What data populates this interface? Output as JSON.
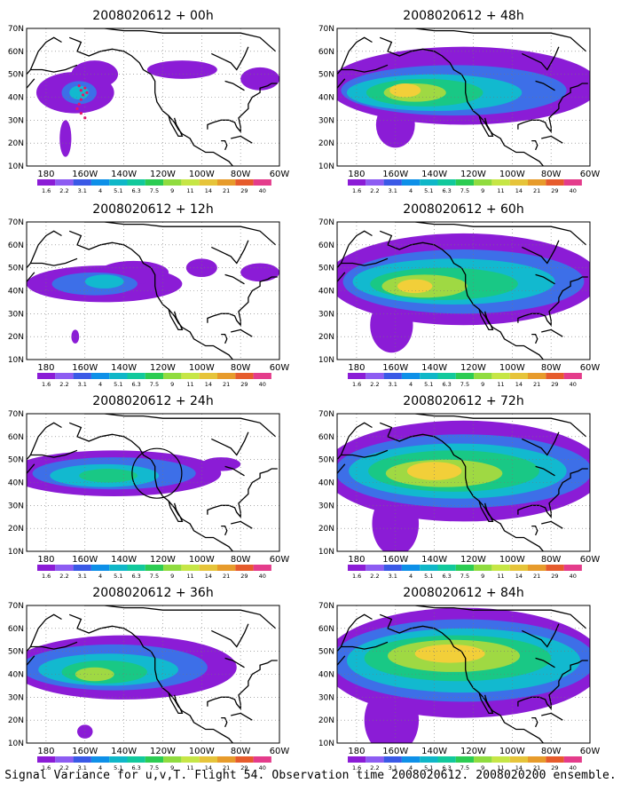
{
  "figure_caption": "Signal Variance for u,v,T. Flight 54. Observation time 2008020612. 2008020200 ensemble.",
  "chart_data": [
    {
      "type": "heatmap",
      "title": "2008020612 + 00h",
      "xlabel": "",
      "ylabel": "",
      "x_ticks": [
        "180",
        "160W",
        "140W",
        "120W",
        "100W",
        "80W",
        "60W"
      ],
      "y_ticks": [
        "10N",
        "20N",
        "30N",
        "40N",
        "50N",
        "60N",
        "70N"
      ],
      "xlim": [
        -190,
        -60
      ],
      "ylim": [
        10,
        70
      ],
      "legend_levels": [
        "1.6",
        "2.2",
        "3.1",
        "4",
        "5.1",
        "6.3",
        "7.5",
        "9",
        "11",
        "14",
        "21",
        "29",
        "40"
      ],
      "markers": "dropsonde points",
      "blobs": [
        {
          "lon": -165,
          "lat": 42,
          "rx": 20,
          "ry": 9,
          "level": 0
        },
        {
          "lon": -155,
          "lat": 50,
          "rx": 12,
          "ry": 6,
          "level": 0
        },
        {
          "lon": -110,
          "lat": 52,
          "rx": 18,
          "ry": 4,
          "level": 0
        },
        {
          "lon": -163,
          "lat": 42,
          "rx": 9,
          "ry": 5,
          "level": 1
        },
        {
          "lon": -163,
          "lat": 42,
          "rx": 5,
          "ry": 3,
          "level": 2
        },
        {
          "lon": -170,
          "lat": 22,
          "rx": 3,
          "ry": 8,
          "level": 0
        },
        {
          "lon": -70,
          "lat": 48,
          "rx": 10,
          "ry": 5,
          "level": 0
        }
      ]
    },
    {
      "type": "heatmap",
      "title": "2008020612 + 12h",
      "xlabel": "",
      "ylabel": "",
      "x_ticks": [
        "180",
        "160W",
        "140W",
        "120W",
        "100W",
        "80W",
        "60W"
      ],
      "y_ticks": [
        "10N",
        "20N",
        "30N",
        "40N",
        "50N",
        "60N",
        "70N"
      ],
      "xlim": [
        -190,
        -60
      ],
      "ylim": [
        10,
        70
      ],
      "legend_levels": [
        "1.6",
        "2.2",
        "3.1",
        "4",
        "5.1",
        "6.3",
        "7.5",
        "9",
        "11",
        "14",
        "21",
        "29",
        "40"
      ],
      "blobs": [
        {
          "lon": -150,
          "lat": 43,
          "rx": 40,
          "ry": 8,
          "level": 0
        },
        {
          "lon": -135,
          "lat": 48,
          "rx": 18,
          "ry": 5,
          "level": 0
        },
        {
          "lon": -100,
          "lat": 50,
          "rx": 8,
          "ry": 4,
          "level": 0
        },
        {
          "lon": -70,
          "lat": 48,
          "rx": 10,
          "ry": 4,
          "level": 0
        },
        {
          "lon": -155,
          "lat": 43,
          "rx": 22,
          "ry": 5,
          "level": 1
        },
        {
          "lon": -150,
          "lat": 44,
          "rx": 10,
          "ry": 3,
          "level": 2
        },
        {
          "lon": -165,
          "lat": 20,
          "rx": 2,
          "ry": 3,
          "level": 0
        }
      ]
    },
    {
      "type": "heatmap",
      "title": "2008020612 + 24h",
      "xlabel": "",
      "ylabel": "",
      "x_ticks": [
        "180",
        "160W",
        "140W",
        "120W",
        "100W",
        "80W",
        "60W"
      ],
      "y_ticks": [
        "10N",
        "20N",
        "30N",
        "40N",
        "50N",
        "60N",
        "70N"
      ],
      "xlim": [
        -190,
        -60
      ],
      "ylim": [
        10,
        70
      ],
      "legend_levels": [
        "1.6",
        "2.2",
        "3.1",
        "4",
        "5.1",
        "6.3",
        "7.5",
        "9",
        "11",
        "14",
        "21",
        "29",
        "40"
      ],
      "annotation": "circle",
      "blobs": [
        {
          "lon": -145,
          "lat": 44,
          "rx": 55,
          "ry": 10,
          "level": 0
        },
        {
          "lon": -145,
          "lat": 44,
          "rx": 42,
          "ry": 7,
          "level": 1
        },
        {
          "lon": -150,
          "lat": 43,
          "rx": 28,
          "ry": 5,
          "level": 2
        },
        {
          "lon": -148,
          "lat": 43,
          "rx": 15,
          "ry": 3,
          "level": 3
        },
        {
          "lon": -90,
          "lat": 48,
          "rx": 10,
          "ry": 3,
          "level": 0
        }
      ]
    },
    {
      "type": "heatmap",
      "title": "2008020612 + 36h",
      "xlabel": "",
      "ylabel": "",
      "x_ticks": [
        "180",
        "160W",
        "140W",
        "120W",
        "100W",
        "80W",
        "60W"
      ],
      "y_ticks": [
        "10N",
        "20N",
        "30N",
        "40N",
        "50N",
        "60N",
        "70N"
      ],
      "xlim": [
        -190,
        -60
      ],
      "ylim": [
        10,
        70
      ],
      "legend_levels": [
        "1.6",
        "2.2",
        "3.1",
        "4",
        "5.1",
        "6.3",
        "7.5",
        "9",
        "11",
        "14",
        "21",
        "29",
        "40"
      ],
      "blobs": [
        {
          "lon": -140,
          "lat": 43,
          "rx": 58,
          "ry": 14,
          "level": 0
        },
        {
          "lon": -145,
          "lat": 43,
          "rx": 48,
          "ry": 10,
          "level": 1
        },
        {
          "lon": -148,
          "lat": 42,
          "rx": 36,
          "ry": 7,
          "level": 2
        },
        {
          "lon": -150,
          "lat": 41,
          "rx": 22,
          "ry": 5,
          "level": 3
        },
        {
          "lon": -155,
          "lat": 40,
          "rx": 10,
          "ry": 3,
          "level": 4
        },
        {
          "lon": -160,
          "lat": 15,
          "rx": 4,
          "ry": 3,
          "level": 0
        }
      ]
    },
    {
      "type": "heatmap",
      "title": "2008020612 + 48h",
      "xlabel": "",
      "ylabel": "",
      "x_ticks": [
        "180",
        "160W",
        "140W",
        "120W",
        "100W",
        "80W",
        "60W"
      ],
      "y_ticks": [
        "10N",
        "20N",
        "30N",
        "40N",
        "50N",
        "60N",
        "70N"
      ],
      "xlim": [
        -190,
        -60
      ],
      "ylim": [
        10,
        70
      ],
      "legend_levels": [
        "1.6",
        "2.2",
        "3.1",
        "4",
        "5.1",
        "6.3",
        "7.5",
        "9",
        "11",
        "14",
        "21",
        "29",
        "40"
      ],
      "blobs": [
        {
          "lon": -125,
          "lat": 45,
          "rx": 70,
          "ry": 17,
          "level": 0
        },
        {
          "lon": -160,
          "lat": 28,
          "rx": 10,
          "ry": 10,
          "level": 0
        },
        {
          "lon": -130,
          "lat": 43,
          "rx": 58,
          "ry": 11,
          "level": 1
        },
        {
          "lon": -140,
          "lat": 42,
          "rx": 45,
          "ry": 8,
          "level": 2
        },
        {
          "lon": -145,
          "lat": 42,
          "rx": 30,
          "ry": 6,
          "level": 3
        },
        {
          "lon": -150,
          "lat": 42,
          "rx": 16,
          "ry": 4,
          "level": 4
        },
        {
          "lon": -155,
          "lat": 43,
          "rx": 8,
          "ry": 3,
          "level": 5
        }
      ]
    },
    {
      "type": "heatmap",
      "title": "2008020612 + 60h",
      "xlabel": "",
      "ylabel": "",
      "x_ticks": [
        "180",
        "160W",
        "140W",
        "120W",
        "100W",
        "80W",
        "60W"
      ],
      "y_ticks": [
        "10N",
        "20N",
        "30N",
        "40N",
        "50N",
        "60N",
        "70N"
      ],
      "xlim": [
        -190,
        -60
      ],
      "ylim": [
        10,
        70
      ],
      "legend_levels": [
        "1.6",
        "2.2",
        "3.1",
        "4",
        "5.1",
        "6.3",
        "7.5",
        "9",
        "11",
        "14",
        "21",
        "29",
        "40"
      ],
      "blobs": [
        {
          "lon": -125,
          "lat": 45,
          "rx": 70,
          "ry": 20,
          "level": 0
        },
        {
          "lon": -162,
          "lat": 25,
          "rx": 11,
          "ry": 12,
          "level": 0
        },
        {
          "lon": -125,
          "lat": 44,
          "rx": 62,
          "ry": 14,
          "level": 1
        },
        {
          "lon": -130,
          "lat": 44,
          "rx": 52,
          "ry": 10,
          "level": 2
        },
        {
          "lon": -135,
          "lat": 43,
          "rx": 38,
          "ry": 7,
          "level": 3
        },
        {
          "lon": -145,
          "lat": 42,
          "rx": 22,
          "ry": 5,
          "level": 4
        },
        {
          "lon": -150,
          "lat": 42,
          "rx": 9,
          "ry": 3,
          "level": 5
        }
      ]
    },
    {
      "type": "heatmap",
      "title": "2008020612 + 72h",
      "xlabel": "",
      "ylabel": "",
      "x_ticks": [
        "180",
        "160W",
        "140W",
        "120W",
        "100W",
        "80W",
        "60W"
      ],
      "y_ticks": [
        "10N",
        "20N",
        "30N",
        "40N",
        "50N",
        "60N",
        "70N"
      ],
      "xlim": [
        -190,
        -60
      ],
      "ylim": [
        10,
        70
      ],
      "legend_levels": [
        "1.6",
        "2.2",
        "3.1",
        "4",
        "5.1",
        "6.3",
        "7.5",
        "9",
        "11",
        "14",
        "21",
        "29",
        "40"
      ],
      "blobs": [
        {
          "lon": -125,
          "lat": 45,
          "rx": 72,
          "ry": 22,
          "level": 0
        },
        {
          "lon": -160,
          "lat": 22,
          "rx": 12,
          "ry": 14,
          "level": 0
        },
        {
          "lon": -125,
          "lat": 45,
          "rx": 66,
          "ry": 16,
          "level": 1
        },
        {
          "lon": -128,
          "lat": 45,
          "rx": 56,
          "ry": 12,
          "level": 2
        },
        {
          "lon": -130,
          "lat": 45,
          "rx": 44,
          "ry": 9,
          "level": 3
        },
        {
          "lon": -135,
          "lat": 44,
          "rx": 30,
          "ry": 6,
          "level": 4
        },
        {
          "lon": -140,
          "lat": 45,
          "rx": 14,
          "ry": 4,
          "level": 5
        }
      ]
    },
    {
      "type": "heatmap",
      "title": "2008020612 + 84h",
      "xlabel": "",
      "ylabel": "",
      "x_ticks": [
        "180",
        "160W",
        "140W",
        "120W",
        "100W",
        "80W",
        "60W"
      ],
      "y_ticks": [
        "10N",
        "20N",
        "30N",
        "40N",
        "50N",
        "60N",
        "70N"
      ],
      "xlim": [
        -190,
        -60
      ],
      "ylim": [
        10,
        70
      ],
      "legend_levels": [
        "1.6",
        "2.2",
        "3.1",
        "4",
        "5.1",
        "6.3",
        "7.5",
        "9",
        "11",
        "14",
        "21",
        "29",
        "40"
      ],
      "blobs": [
        {
          "lon": -125,
          "lat": 45,
          "rx": 72,
          "ry": 24,
          "level": 0
        },
        {
          "lon": -162,
          "lat": 20,
          "rx": 14,
          "ry": 15,
          "level": 0
        },
        {
          "lon": -125,
          "lat": 46,
          "rx": 68,
          "ry": 18,
          "level": 1
        },
        {
          "lon": -125,
          "lat": 46,
          "rx": 60,
          "ry": 14,
          "level": 2
        },
        {
          "lon": -128,
          "lat": 47,
          "rx": 48,
          "ry": 10,
          "level": 3
        },
        {
          "lon": -130,
          "lat": 48,
          "rx": 34,
          "ry": 7,
          "level": 4
        },
        {
          "lon": -132,
          "lat": 49,
          "rx": 18,
          "ry": 4,
          "level": 5
        }
      ]
    }
  ],
  "colors": {
    "legend_ramp": [
      "#8b1cd6",
      "#8d5cf2",
      "#3a59e6",
      "#0e90e8",
      "#0fb7c8",
      "#12c99c",
      "#2ccc52",
      "#90dc3f",
      "#c6e646",
      "#e6c43a",
      "#e79b2b",
      "#e65b2c",
      "#e43c8b"
    ],
    "field_levels": [
      "#8b1cd6",
      "#3d6fe8",
      "#12b9cf",
      "#19c885",
      "#9fd943",
      "#f2cf39"
    ],
    "coast": "#000000"
  }
}
